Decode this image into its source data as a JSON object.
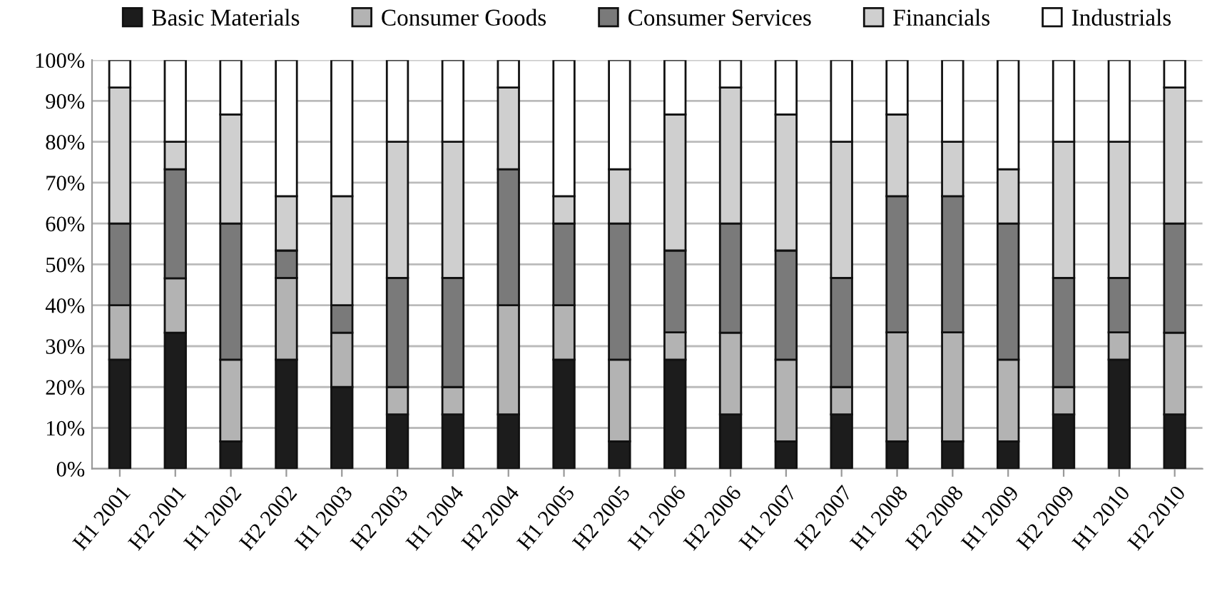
{
  "chart_data": {
    "type": "bar",
    "stacked": true,
    "grid": "y",
    "legend": "top",
    "categories": [
      "H1 2001",
      "H2 2001",
      "H1 2002",
      "H2 2002",
      "H1 2003",
      "H2 2003",
      "H1 2004",
      "H2 2004",
      "H1 2005",
      "H2 2005",
      "H1 2006",
      "H2 2006",
      "H1 2007",
      "H2 2007",
      "H1 2008",
      "H2 2008",
      "H1 2009",
      "H2 2009",
      "H1 2010",
      "H2 2010"
    ],
    "ylim": [
      0,
      100
    ],
    "yticks": [
      {
        "value": 0,
        "label": "0%"
      },
      {
        "value": 10,
        "label": "10%"
      },
      {
        "value": 20,
        "label": "20%"
      },
      {
        "value": 30,
        "label": "30%"
      },
      {
        "value": 40,
        "label": "40%"
      },
      {
        "value": 50,
        "label": "50%"
      },
      {
        "value": 60,
        "label": "60%"
      },
      {
        "value": 70,
        "label": "70%"
      },
      {
        "value": 80,
        "label": "80%"
      },
      {
        "value": 90,
        "label": "90%"
      },
      {
        "value": 100,
        "label": "100%"
      }
    ],
    "series": [
      {
        "name": "Basic Materials",
        "color": "#1c1c1c",
        "values": [
          26.7,
          33.3,
          6.7,
          26.7,
          20,
          13.3,
          13.3,
          13.3,
          26.7,
          6.7,
          26.7,
          13.3,
          6.7,
          13.3,
          6.7,
          6.7,
          6.7,
          13.3,
          26.7,
          13.3
        ]
      },
      {
        "name": "Consumer Goods",
        "color": "#b3b3b3",
        "values": [
          13.3,
          13.3,
          20,
          20,
          13.3,
          6.7,
          6.7,
          26.7,
          13.3,
          20,
          6.7,
          20,
          20,
          6.7,
          26.7,
          26.7,
          20,
          6.7,
          6.7,
          20
        ]
      },
      {
        "name": "Consumer Services",
        "color": "#7a7a7a",
        "values": [
          20,
          26.7,
          33.3,
          6.7,
          6.7,
          26.7,
          26.7,
          33.3,
          20,
          33.3,
          20,
          26.7,
          26.7,
          26.7,
          33.3,
          33.3,
          33.3,
          26.7,
          13.3,
          26.7
        ]
      },
      {
        "name": "Financials",
        "color": "#cfcfcf",
        "values": [
          33.3,
          6.7,
          26.7,
          13.3,
          26.7,
          33.3,
          33.3,
          20,
          6.7,
          13.3,
          33.3,
          33.3,
          33.3,
          33.3,
          20,
          13.3,
          13.3,
          33.3,
          33.3,
          33.3
        ]
      },
      {
        "name": "Industrials",
        "color": "#ffffff",
        "values": [
          6.7,
          20,
          13.3,
          33.3,
          33.3,
          20,
          20,
          6.7,
          33.3,
          26.7,
          13.3,
          6.7,
          13.3,
          20,
          13.3,
          20,
          26.7,
          20,
          20,
          6.7
        ]
      }
    ]
  }
}
